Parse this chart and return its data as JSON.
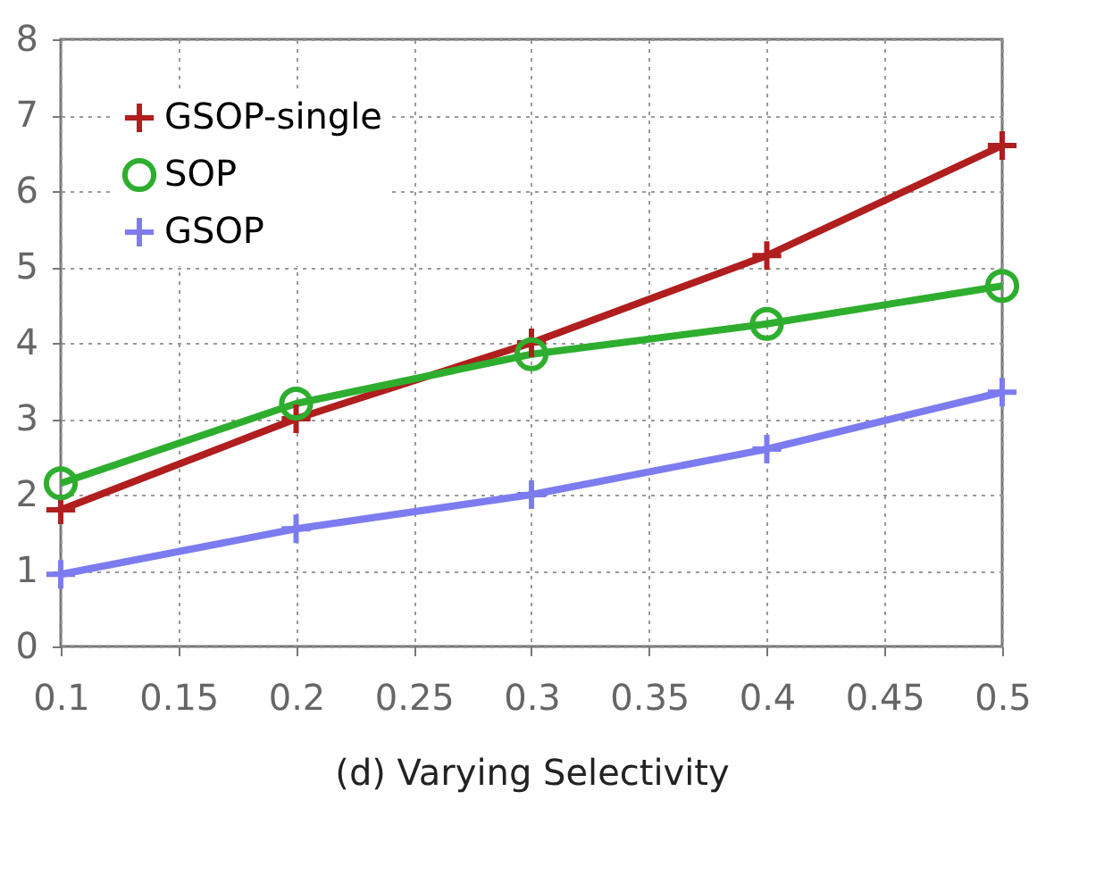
{
  "chart_data": {
    "type": "line",
    "xlabel": "(d) Varying Selectivity",
    "x": [
      0.1,
      0.2,
      0.3,
      0.4,
      0.5
    ],
    "series": [
      {
        "name": "GSOP-single",
        "color": "#b01e1e",
        "marker": "cross",
        "values": [
          1.8,
          3.0,
          4.0,
          5.15,
          6.6
        ]
      },
      {
        "name": "SOP",
        "color": "#2eae2e",
        "marker": "circle",
        "values": [
          2.15,
          3.2,
          3.85,
          4.25,
          4.75
        ]
      },
      {
        "name": "GSOP",
        "color": "#7c7cf0",
        "marker": "cross",
        "values": [
          0.95,
          1.55,
          2.0,
          2.6,
          3.35
        ]
      }
    ],
    "xlim": [
      0.1,
      0.5
    ],
    "xticks": [
      0.1,
      0.15,
      0.2,
      0.25,
      0.3,
      0.35,
      0.4,
      0.45,
      0.5
    ],
    "ylim": [
      0,
      8
    ],
    "yticks": [
      0,
      1,
      2,
      3,
      4,
      5,
      6,
      7,
      8
    ],
    "grid": true,
    "legend": "top left",
    "line_style": "solid"
  }
}
